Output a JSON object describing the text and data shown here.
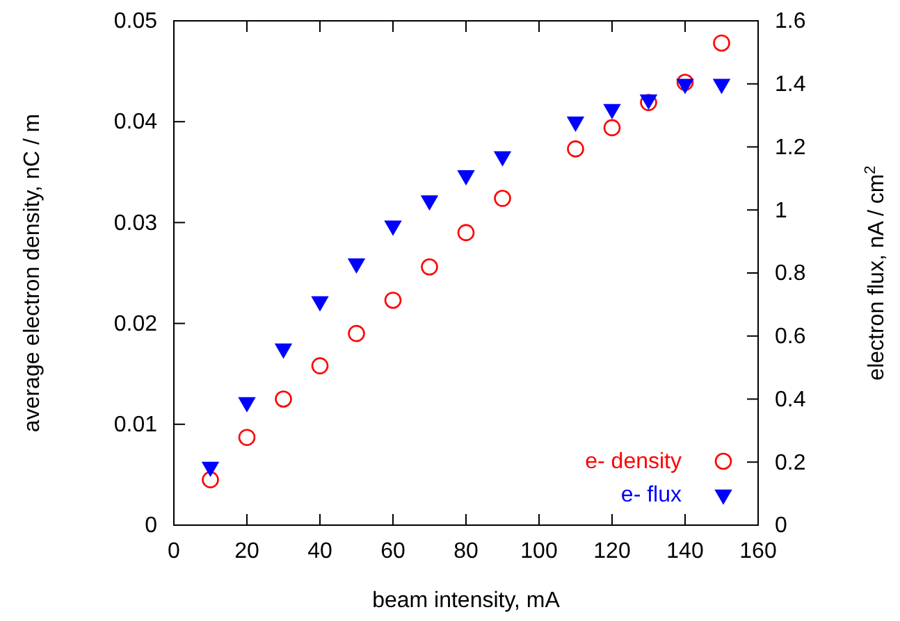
{
  "chart_data": {
    "type": "scatter",
    "xlabel": "beam intensity, mA",
    "ylabel": "average electron density, nC / m",
    "y2label": "electron flux, nA / cm$^{2}$",
    "x": [
      10,
      20,
      30,
      40,
      50,
      60,
      70,
      80,
      90,
      110,
      120,
      130,
      140,
      150
    ],
    "series": [
      {
        "name": "e- density",
        "color": "#ff0000",
        "marker": "circle",
        "values": [
          0.0045,
          0.0087,
          0.0125,
          0.0158,
          0.019,
          0.0223,
          0.0256,
          0.029,
          0.0324,
          0.0373,
          0.0394,
          0.0419,
          0.0439,
          0.0478
        ]
      },
      {
        "name": "e- flux",
        "color": "#0000ff",
        "marker": "triangle",
        "axis": "y2",
        "values": [
          0.185,
          0.39,
          0.56,
          0.71,
          0.83,
          0.95,
          1.03,
          1.11,
          1.17,
          1.28,
          1.32,
          1.35,
          1.4,
          1.4
        ]
      }
    ],
    "xlim": [
      0,
      160
    ],
    "xticks": [
      0,
      20,
      40,
      60,
      80,
      100,
      120,
      140,
      160
    ],
    "ylim": [
      0,
      0.05
    ],
    "yticks": [
      0,
      0.01,
      0.02,
      0.03,
      0.04,
      0.05
    ],
    "y2lim": [
      0,
      1.6
    ],
    "y2ticks": [
      0,
      0.2,
      0.4,
      0.6,
      0.8,
      1,
      1.2,
      1.4,
      1.6
    ],
    "legend": "bottom right",
    "grid": false
  }
}
